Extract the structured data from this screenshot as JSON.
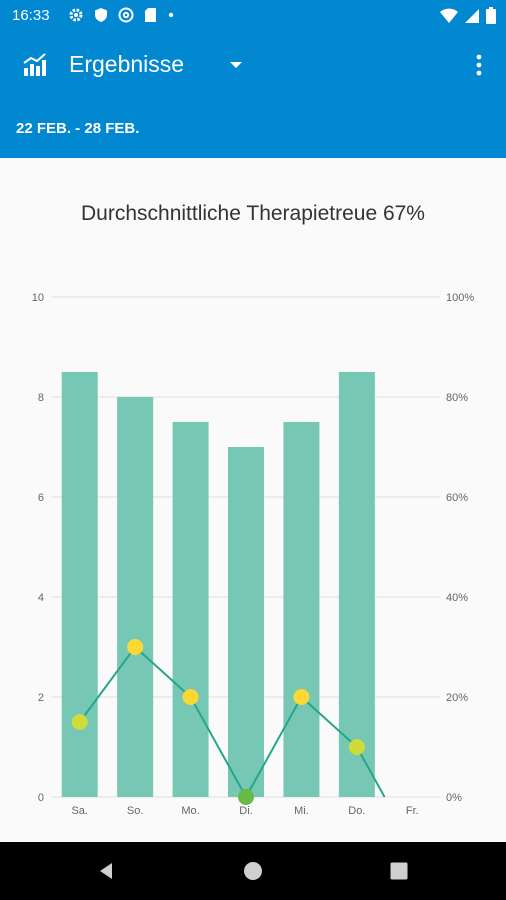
{
  "status_bar": {
    "time": "16:33",
    "left_icons": [
      "gear-icon",
      "shield-icon",
      "at-sign-icon",
      "sd-card-icon",
      "dot-icon"
    ],
    "right_icons": [
      "wifi-icon",
      "cellular-signal-icon",
      "battery-icon"
    ]
  },
  "app_bar": {
    "icon": "chart-icon",
    "title": "Ergebnisse",
    "date_range": "22 FEB. - 28 FEB."
  },
  "chart_data": {
    "type": "bar",
    "title": "Durchschnittliche Therapietreue 67%",
    "categories": [
      "Sa.",
      "So.",
      "Mo.",
      "Di.",
      "Mi.",
      "Do.",
      "Fr."
    ],
    "series": [
      {
        "type": "bar",
        "axis": "left",
        "values": [
          8.5,
          8,
          7.5,
          7,
          7.5,
          8.5,
          null
        ],
        "color": "#76c8b4"
      },
      {
        "type": "line",
        "axis": "right",
        "values": [
          15,
          30,
          20,
          0,
          20,
          10,
          null
        ],
        "line_end": 0,
        "color": "#26a68a"
      }
    ],
    "y_left": {
      "min": 0,
      "max": 10,
      "ticks": [
        "0",
        "2",
        "4",
        "6",
        "8",
        "10"
      ]
    },
    "y_right": {
      "min": 0,
      "max": 100,
      "ticks": [
        "0%",
        "20%",
        "40%",
        "60%",
        "80%",
        "100%"
      ]
    },
    "grid": true,
    "point_colors": {
      "high": "#fdd835",
      "mid": "#cddc39",
      "low": "#66bb44"
    }
  },
  "nav_bar": {
    "back_icon": "back-triangle-icon",
    "home_icon": "home-circle-icon",
    "recents_icon": "recents-square-icon"
  }
}
